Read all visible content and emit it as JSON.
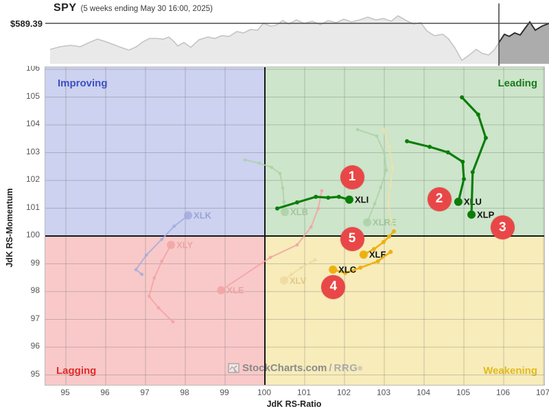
{
  "header": {
    "symbol": "SPY",
    "subtitle": "(5 weeks ending May 30 16:00, 2025)",
    "price_label": "$589.39"
  },
  "watermark": {
    "icon": "stockcharts-logo-icon",
    "main": "StockCharts.com",
    "sep": "/",
    "rrg": "RRG",
    "reg": "®"
  },
  "quadrants": {
    "improving": {
      "label": "Improving",
      "color": "#3c4fc0",
      "bg": "#ccd2ef"
    },
    "leading": {
      "label": "Leading",
      "color": "#187a1d",
      "bg": "#cde5ca"
    },
    "lagging": {
      "label": "Lagging",
      "color": "#e22c2c",
      "bg": "#f9c9c9"
    },
    "weakening": {
      "label": "Weakening",
      "color": "#e2ba1c",
      "bg": "#f7ecba"
    }
  },
  "axes": {
    "x_title": "JdK RS-Ratio",
    "y_title": "JdK RS-Momentum",
    "x_ticks": [
      95,
      96,
      97,
      98,
      99,
      100,
      101,
      102,
      103,
      104,
      105,
      106,
      107
    ],
    "y_ticks": [
      95,
      96,
      97,
      98,
      99,
      100,
      101,
      102,
      103,
      104,
      105,
      106
    ]
  },
  "badges": [
    {
      "label": "1",
      "ratio": 102.19,
      "momentum": 102.12
    },
    {
      "label": "2",
      "ratio": 104.38,
      "momentum": 101.33
    },
    {
      "label": "3",
      "ratio": 105.97,
      "momentum": 100.3
    },
    {
      "label": "4",
      "ratio": 101.72,
      "momentum": 98.17
    },
    {
      "label": "5",
      "ratio": 102.19,
      "momentum": 99.9
    }
  ],
  "chart_data": {
    "type": "scatter",
    "subtype": "relative-rotation-graph",
    "xlabel": "JdK RS-Ratio",
    "ylabel": "JdK RS-Momentum",
    "xlim": [
      94.5,
      107.05
    ],
    "ylim": [
      94.6,
      106.07
    ],
    "grid": true,
    "series": [
      {
        "name": "XLK",
        "faded": true,
        "color": "#a3abdd",
        "label_color": "#8e97cf",
        "width": 2,
        "points": [
          [
            96.91,
            98.62
          ],
          [
            96.76,
            98.79
          ],
          [
            97.02,
            99.31
          ],
          [
            97.41,
            99.88
          ],
          [
            97.72,
            100.35
          ],
          [
            98.07,
            100.74
          ]
        ]
      },
      {
        "name": "XLY",
        "faded": true,
        "color": "#f2a3a3",
        "label_color": "#e89b9b",
        "width": 2,
        "points": [
          [
            97.69,
            96.91
          ],
          [
            97.33,
            97.41
          ],
          [
            97.09,
            97.83
          ],
          [
            97.22,
            98.49
          ],
          [
            97.41,
            99.09
          ],
          [
            97.64,
            99.68
          ]
        ]
      },
      {
        "name": "XLE",
        "faded": true,
        "color": "#f2a3a3",
        "label_color": "#e89b9b",
        "width": 2,
        "points": [
          [
            101.43,
            101.63
          ],
          [
            101.34,
            100.99
          ],
          [
            101.16,
            100.32
          ],
          [
            100.81,
            99.68
          ],
          [
            100.14,
            99.23
          ],
          [
            98.9,
            98.05
          ]
        ]
      },
      {
        "name": "XLB",
        "faded": true,
        "color": "#abd2a6",
        "label_color": "#94bf90",
        "width": 2,
        "points": [
          [
            99.5,
            102.74
          ],
          [
            99.86,
            102.62
          ],
          [
            100.17,
            102.47
          ],
          [
            100.38,
            102.25
          ],
          [
            100.45,
            101.73
          ],
          [
            100.48,
            101.23
          ],
          [
            100.5,
            100.86
          ]
        ]
      },
      {
        "name": "XLRE",
        "faded": true,
        "color": "#abd2a6",
        "label_color": "#94bf90",
        "width": 2,
        "points": [
          [
            102.33,
            103.83
          ],
          [
            102.81,
            103.6
          ],
          [
            103.0,
            102.99
          ],
          [
            103.05,
            102.37
          ],
          [
            102.91,
            101.75
          ],
          [
            102.76,
            101.16
          ],
          [
            102.57,
            100.49
          ]
        ]
      },
      {
        "name": "XLV",
        "faded": true,
        "color": "#eed9a0",
        "label_color": "#dcc178",
        "width": 2,
        "points": [
          [
            101.26,
            99.14
          ],
          [
            100.91,
            98.86
          ],
          [
            100.67,
            98.62
          ],
          [
            100.48,
            98.4
          ]
        ]
      },
      {
        "name": "XLF-history",
        "faded": true,
        "color": "#f2e0a6",
        "label_color": null,
        "width": 2,
        "no_endpoint": true,
        "no_label": true,
        "points": [
          [
            102.98,
            103.83
          ],
          [
            103.12,
            103.23
          ],
          [
            103.21,
            102.47
          ],
          [
            103.16,
            101.85
          ],
          [
            103.1,
            101.19
          ],
          [
            103.17,
            100.57
          ],
          [
            103.24,
            100.17
          ]
        ]
      },
      {
        "name": "XLI",
        "faded": false,
        "color": "#0b7d0b",
        "label_color": "#111111",
        "width": 3.2,
        "points": [
          [
            100.31,
            100.99
          ],
          [
            100.81,
            101.21
          ],
          [
            101.28,
            101.41
          ],
          [
            101.59,
            101.38
          ],
          [
            101.86,
            101.41
          ],
          [
            102.12,
            101.31
          ]
        ]
      },
      {
        "name": "XLU",
        "faded": false,
        "color": "#0b7d0b",
        "label_color": "#111111",
        "width": 3.2,
        "points": [
          [
            103.57,
            103.41
          ],
          [
            104.14,
            103.21
          ],
          [
            104.6,
            103.01
          ],
          [
            104.97,
            102.67
          ],
          [
            105.0,
            102.05
          ],
          [
            104.86,
            101.23
          ]
        ]
      },
      {
        "name": "XLP",
        "faded": false,
        "color": "#0b7d0b",
        "label_color": "#111111",
        "width": 3.2,
        "points": [
          [
            104.95,
            104.99
          ],
          [
            105.36,
            104.37
          ],
          [
            105.55,
            103.53
          ],
          [
            105.22,
            102.3
          ],
          [
            105.19,
            100.77
          ]
        ]
      },
      {
        "name": "XLF",
        "faded": false,
        "color": "#edb10f",
        "label_color": "#111111",
        "width": 2.6,
        "points": [
          [
            103.24,
            100.17
          ],
          [
            103.12,
            99.98
          ],
          [
            102.98,
            99.78
          ],
          [
            102.74,
            99.53
          ],
          [
            102.48,
            99.33
          ]
        ]
      },
      {
        "name": "XLC",
        "faded": false,
        "color": "#edb10f",
        "label_color": "#111111",
        "width": 2.6,
        "points": [
          [
            103.16,
            99.43
          ],
          [
            102.84,
            99.09
          ],
          [
            102.4,
            98.86
          ],
          [
            102.02,
            98.67
          ],
          [
            101.71,
            98.79
          ]
        ]
      }
    ],
    "spy_overview": {
      "price_line_y": 34,
      "divider_x": 727,
      "baseline_y": 93,
      "points": [
        [
          73,
          72
        ],
        [
          88,
          68
        ],
        [
          103,
          66
        ],
        [
          117,
          68
        ],
        [
          130,
          62
        ],
        [
          142,
          57
        ],
        [
          152,
          60
        ],
        [
          163,
          64
        ],
        [
          176,
          69
        ],
        [
          188,
          73
        ],
        [
          199,
          68
        ],
        [
          208,
          61
        ],
        [
          218,
          56
        ],
        [
          228,
          56
        ],
        [
          238,
          57
        ],
        [
          246,
          54
        ],
        [
          253,
          60
        ],
        [
          259,
          67
        ],
        [
          268,
          62
        ],
        [
          278,
          69
        ],
        [
          290,
          58
        ],
        [
          303,
          54
        ],
        [
          313,
          56
        ],
        [
          323,
          52
        ],
        [
          334,
          53
        ],
        [
          345,
          46
        ],
        [
          355,
          48
        ],
        [
          365,
          43
        ],
        [
          375,
          44
        ],
        [
          384,
          34
        ],
        [
          394,
          38
        ],
        [
          402,
          37
        ],
        [
          412,
          30
        ],
        [
          421,
          35
        ],
        [
          432,
          29
        ],
        [
          443,
          34
        ],
        [
          455,
          31
        ],
        [
          467,
          36
        ],
        [
          478,
          30
        ],
        [
          490,
          33
        ],
        [
          501,
          28
        ],
        [
          512,
          32
        ],
        [
          524,
          29
        ],
        [
          536,
          25
        ],
        [
          548,
          29
        ],
        [
          559,
          27
        ],
        [
          570,
          31
        ],
        [
          580,
          23
        ],
        [
          592,
          30
        ],
        [
          603,
          35
        ],
        [
          613,
          33
        ],
        [
          622,
          45
        ],
        [
          633,
          52
        ],
        [
          645,
          50
        ],
        [
          653,
          56
        ],
        [
          663,
          70
        ],
        [
          673,
          88
        ],
        [
          684,
          80
        ],
        [
          694,
          72
        ],
        [
          703,
          78
        ],
        [
          712,
          80
        ],
        [
          720,
          73
        ],
        [
          727,
          62
        ]
      ],
      "highlight_points": [
        [
          727,
          62
        ],
        [
          735,
          50
        ],
        [
          742,
          53
        ],
        [
          750,
          48
        ],
        [
          758,
          51
        ],
        [
          766,
          40
        ],
        [
          772,
          32
        ],
        [
          780,
          44
        ],
        [
          790,
          38
        ],
        [
          800,
          34
        ]
      ]
    }
  }
}
